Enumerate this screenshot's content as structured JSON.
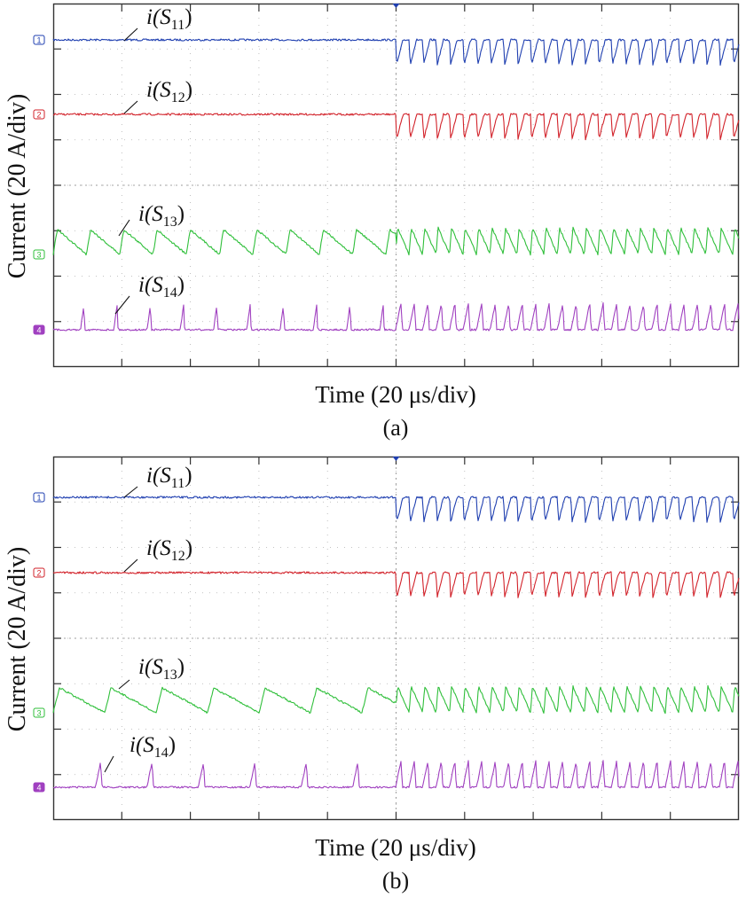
{
  "ylabel": "Current (20 A/div)",
  "xlabel": "Time (20 μs/div)",
  "colors": {
    "S11": "#1f3fb0",
    "S12": "#d2222a",
    "S13": "#2fbf3a",
    "S14": "#a040c0",
    "grid": "#b0b0b0"
  },
  "chart_data": [
    {
      "type": "line",
      "caption": "(a)",
      "ylabel": "Current (20 A/div)",
      "xlabel": "Time (20 μs/div)",
      "x_divisions": 10,
      "y_divisions": 8,
      "grid": true,
      "series": [
        {
          "name": "i(S11)",
          "name_main": "i(S",
          "name_sub": "11",
          "channel_marker": "1",
          "color": "#1f3fb0"
        },
        {
          "name": "i(S12)",
          "name_main": "i(S",
          "name_sub": "12",
          "channel_marker": "2",
          "color": "#d2222a"
        },
        {
          "name": "i(S13)",
          "name_main": "i(S",
          "name_sub": "13",
          "channel_marker": "3",
          "color": "#2fbf3a"
        },
        {
          "name": "i(S14)",
          "name_main": "i(S",
          "name_sub": "14",
          "channel_marker": "4",
          "color": "#a040c0"
        }
      ]
    },
    {
      "type": "line",
      "caption": "(b)",
      "ylabel": "Current (20 A/div)",
      "xlabel": "Time (20 μs/div)",
      "x_divisions": 10,
      "y_divisions": 8,
      "grid": true,
      "series": [
        {
          "name": "i(S11)",
          "name_main": "i(S",
          "name_sub": "11",
          "channel_marker": "1",
          "color": "#1f3fb0"
        },
        {
          "name": "i(S12)",
          "name_main": "i(S",
          "name_sub": "12",
          "channel_marker": "2",
          "color": "#d2222a"
        },
        {
          "name": "i(S13)",
          "name_main": "i(S",
          "name_sub": "13",
          "channel_marker": "3",
          "color": "#2fbf3a"
        },
        {
          "name": "i(S14)",
          "name_main": "i(S",
          "name_sub": "14",
          "channel_marker": "4",
          "color": "#a040c0"
        }
      ]
    }
  ]
}
